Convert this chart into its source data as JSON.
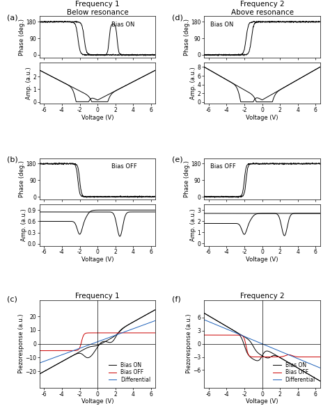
{
  "fig_width": 4.74,
  "fig_height": 5.87,
  "dpi": 100,
  "col1_title": "Frequency 1",
  "col1_subtitle": "Below resonance",
  "col2_title": "Frequency 2",
  "col2_subtitle": "Above resonance",
  "bias_on_label": "Bias ON",
  "bias_off_label": "Bias OFF",
  "xlabel": "Voltage (V)",
  "phase_ylabel": "Phase (deg.)",
  "amp_ylabel": "Amp. (a.u.)",
  "piezo_ylabel": "Piezoresponse (a.u.)",
  "xlim": [
    -6.5,
    6.5
  ],
  "xticks": [
    -6,
    -4,
    -2,
    0,
    2,
    4,
    6
  ],
  "legend_labels": [
    "Bias ON",
    "Bias OFF",
    "Differential"
  ],
  "legend_colors": [
    "#000000",
    "#cc0000",
    "#1a5eb8"
  ],
  "background": "#ffffff",
  "line_color": "#000000"
}
